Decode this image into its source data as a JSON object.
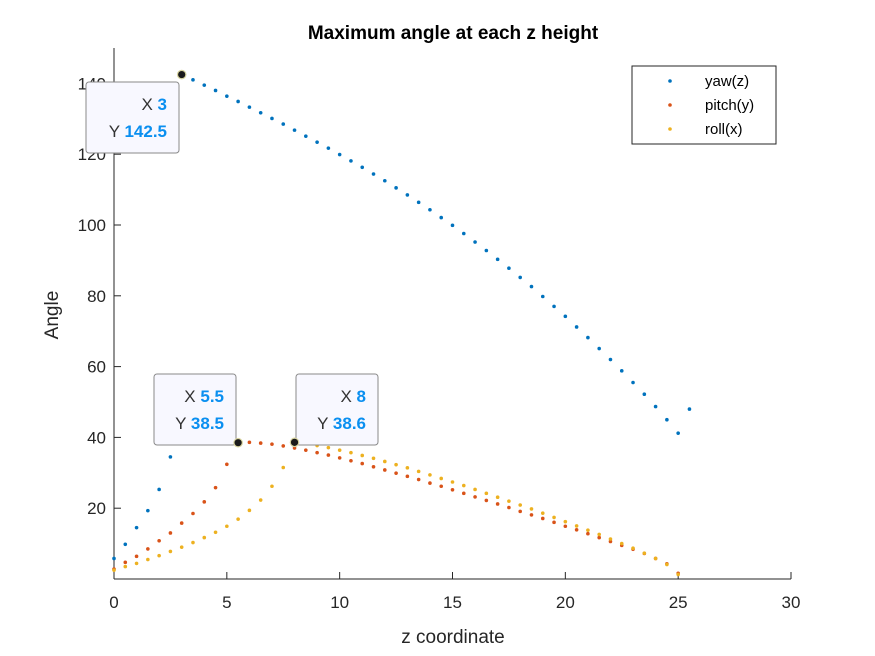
{
  "chart_data": {
    "type": "scatter",
    "title": "Maximum angle at each z height",
    "xlabel": "z coordinate",
    "ylabel": "Angle",
    "xlim": [
      0,
      30
    ],
    "ylim": [
      0,
      150
    ],
    "xticks": [
      0,
      5,
      10,
      15,
      20,
      25,
      30
    ],
    "yticks": [
      20,
      40,
      60,
      80,
      100,
      120,
      140
    ],
    "grid": false,
    "legend_position": "top-right",
    "series": [
      {
        "name": "yaw(z)",
        "color": "#0072BD",
        "x": [
          0,
          0.5,
          1,
          1.5,
          2,
          2.5,
          3,
          3.5,
          4,
          4.5,
          5,
          5.5,
          6,
          6.5,
          7,
          7.5,
          8,
          8.5,
          9,
          9.5,
          10,
          10.5,
          11,
          11.5,
          12,
          12.5,
          13,
          13.5,
          14,
          14.5,
          15,
          15.5,
          16,
          16.5,
          17,
          17.5,
          18,
          18.5,
          19,
          19.5,
          20,
          20.5,
          21,
          21.5,
          22,
          22.5,
          23,
          23.5,
          24,
          24.5,
          25,
          25.5
        ],
        "y": [
          5.8,
          9.8,
          14.5,
          19.3,
          25.3,
          34.5,
          142.5,
          141.0,
          139.5,
          138.0,
          136.4,
          134.9,
          133.3,
          131.7,
          130.1,
          128.5,
          126.8,
          125.1,
          123.4,
          121.7,
          119.9,
          118.1,
          116.3,
          114.4,
          112.5,
          110.5,
          108.5,
          106.4,
          104.3,
          102.1,
          99.9,
          97.6,
          95.2,
          92.8,
          90.3,
          87.8,
          85.2,
          82.6,
          79.8,
          77.0,
          74.2,
          71.2,
          68.2,
          65.1,
          62.0,
          58.8,
          55.5,
          52.2,
          48.7,
          45.0,
          41.2,
          48.0
        ]
      },
      {
        "name": "pitch(y)",
        "color": "#D95319",
        "x": [
          0,
          0.5,
          1,
          1.5,
          2,
          2.5,
          3,
          3.5,
          4,
          4.5,
          5,
          5.5,
          6,
          6.5,
          7,
          7.5,
          8,
          8.5,
          9,
          9.5,
          10,
          10.5,
          11,
          11.5,
          12,
          12.5,
          13,
          13.5,
          14,
          14.5,
          15,
          15.5,
          16,
          16.5,
          17,
          17.5,
          18,
          18.5,
          19,
          19.5,
          20,
          20.5,
          21,
          21.5,
          22,
          22.5,
          23,
          23.5,
          24,
          24.5,
          25
        ],
        "y": [
          2.8,
          4.7,
          6.4,
          8.5,
          10.8,
          13.0,
          15.8,
          18.5,
          21.8,
          25.8,
          32.4,
          38.5,
          38.6,
          38.4,
          38.1,
          37.6,
          37.0,
          36.4,
          35.7,
          35.0,
          34.2,
          33.4,
          32.6,
          31.7,
          30.8,
          29.9,
          29.0,
          28.1,
          27.1,
          26.2,
          25.2,
          24.2,
          23.2,
          22.2,
          21.2,
          20.2,
          19.1,
          18.1,
          17.1,
          16.0,
          14.9,
          13.9,
          12.8,
          11.7,
          10.6,
          9.5,
          8.4,
          7.2,
          5.8,
          4.3,
          1.6
        ]
      },
      {
        "name": "roll(x)",
        "color": "#EDB120",
        "x": [
          0,
          0.5,
          1,
          1.5,
          2,
          2.5,
          3,
          3.5,
          4,
          4.5,
          5,
          5.5,
          6,
          6.5,
          7,
          7.5,
          8,
          8.5,
          9,
          9.5,
          10,
          10.5,
          11,
          11.5,
          12,
          12.5,
          13,
          13.5,
          14,
          14.5,
          15,
          15.5,
          16,
          16.5,
          17,
          17.5,
          18,
          18.5,
          19,
          19.5,
          20,
          20.5,
          21,
          21.5,
          22,
          22.5,
          23,
          23.5,
          24,
          24.5,
          25
        ],
        "y": [
          2.5,
          3.5,
          4.4,
          5.5,
          6.6,
          7.8,
          9.0,
          10.3,
          11.7,
          13.2,
          14.9,
          16.9,
          19.4,
          22.3,
          26.2,
          31.5,
          38.6,
          38.3,
          37.7,
          37.1,
          36.4,
          35.7,
          34.9,
          34.1,
          33.2,
          32.3,
          31.4,
          30.4,
          29.4,
          28.4,
          27.4,
          26.4,
          25.3,
          24.2,
          23.1,
          22.0,
          20.9,
          19.8,
          18.6,
          17.4,
          16.2,
          15.0,
          13.8,
          12.6,
          11.3,
          10.0,
          8.7,
          7.3,
          5.8,
          4.1,
          1.3
        ]
      }
    ],
    "annotations": [
      {
        "series": "yaw(z)",
        "x": 3,
        "y": 142.5,
        "x_key": "X",
        "x_text": "3",
        "y_key": "Y",
        "y_text": "142.5"
      },
      {
        "series": "pitch(y)",
        "x": 5.5,
        "y": 38.5,
        "x_key": "X",
        "x_text": "5.5",
        "y_key": "Y",
        "y_text": "38.5"
      },
      {
        "series": "roll(x)",
        "x": 8,
        "y": 38.6,
        "x_key": "X",
        "x_text": "8",
        "y_key": "Y",
        "y_text": "38.6"
      }
    ]
  }
}
